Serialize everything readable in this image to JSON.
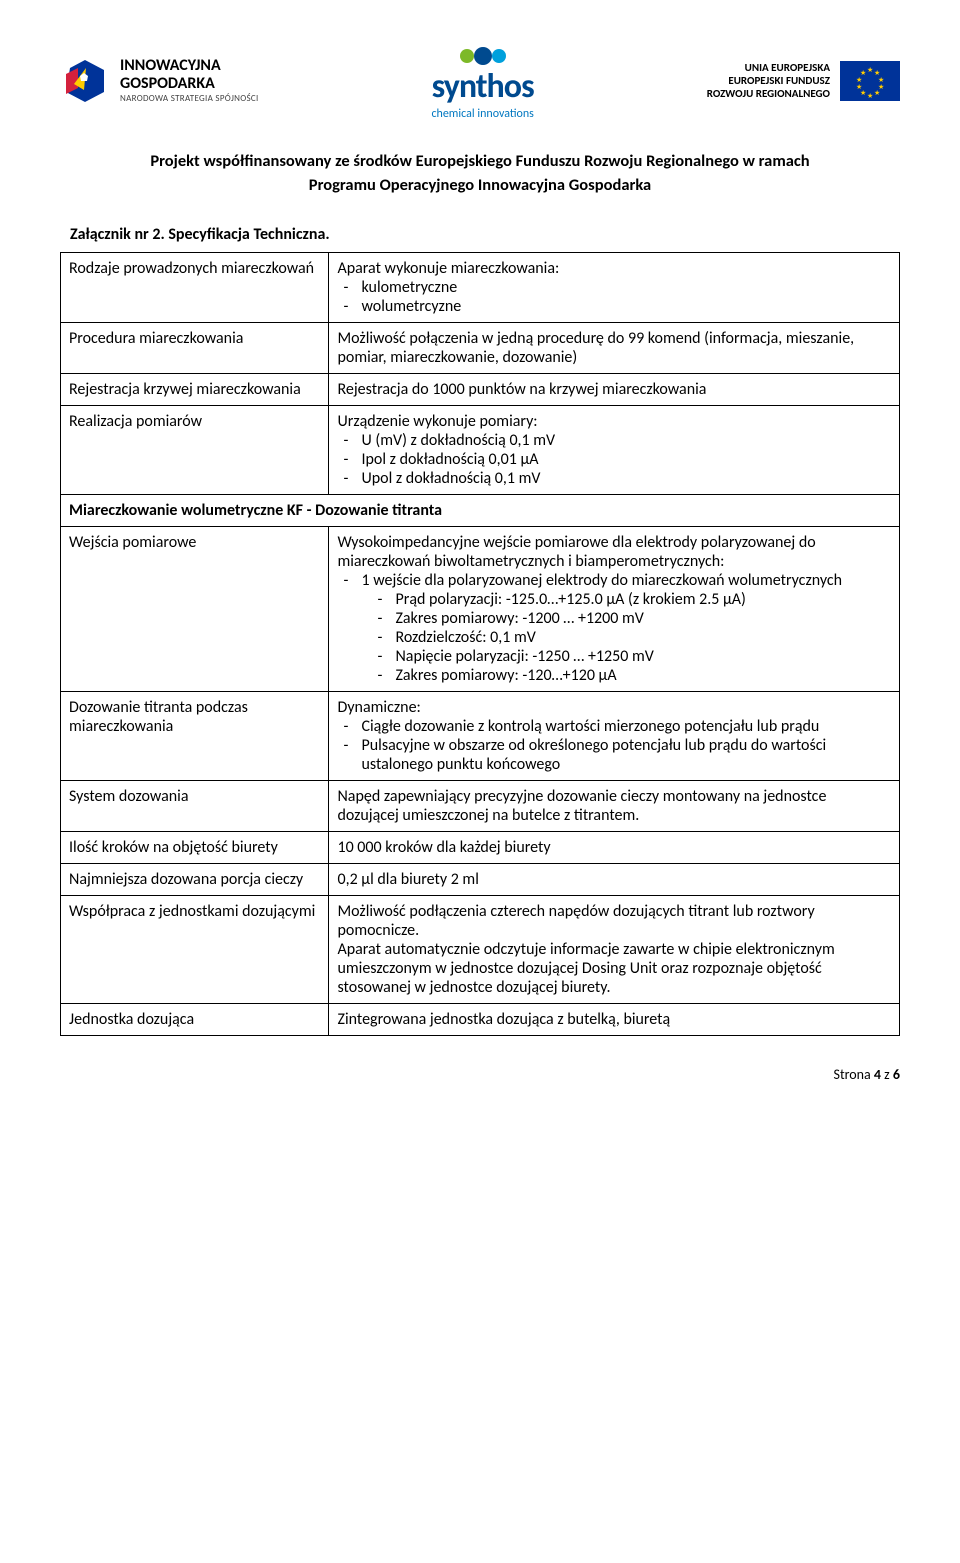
{
  "logos": {
    "ig": {
      "title": "INNOWACYJNA",
      "sub": "GOSPODARKA",
      "caption": "NARODOWA STRATEGIA SPÓJNOŚCI"
    },
    "synthos": {
      "title": "synthos",
      "sub": "chemical innovations"
    },
    "eu": {
      "l1": "UNIA EUROPEJSKA",
      "l2": "EUROPEJSKI FUNDUSZ",
      "l3": "ROZWOJU REGIONALNEGO"
    }
  },
  "heading1": "Projekt współfinansowany ze środków Europejskiego Funduszu Rozwoju Regionalnego w ramach",
  "heading2": "Programu Operacyjnego Innowacyjna Gospodarka",
  "attachment_title": "Załącznik nr 2. Specyfikacja Techniczna.",
  "rows": [
    {
      "label": "Rodzaje prowadzonych miareczkowań",
      "lead": "Aparat wykonuje miareczkowania:",
      "items": [
        "kulometryczne",
        "wolumetrcyzne"
      ]
    },
    {
      "label": "Procedura miareczkowania",
      "text": "Możliwość połączenia w jedną procedurę do 99 komend (informacja, mieszanie, pomiar, miareczkowanie, dozowanie)"
    },
    {
      "label": "Rejestracja krzywej miareczkowania",
      "text": "Rejestracja do 1000 punktów na krzywej miareczkowania"
    },
    {
      "label": "Realizacja pomiarów",
      "lead": "Urządzenie wykonuje pomiary:",
      "items": [
        "U (mV) z dokładnością 0,1 mV",
        "Ipol z dokładnością 0,01 μA",
        "Upol z dokładnością 0,1 mV"
      ]
    }
  ],
  "section_header": "Miareczkowanie wolumetryczne KF - Dozowanie titranta",
  "rows2": [
    {
      "label": "Wejścia pomiarowe",
      "lead": "Wysokoimpedancyjne wejście pomiarowe dla elektrody polaryzowanej do miareczkowań biwoltametrycznych i biamperometrycznych:",
      "items": [
        "1 wejście dla polaryzowanej elektrody do miareczkowań wolumetrycznych"
      ],
      "nested": [
        "Prąd polaryzacji: -125.0…+125.0 µA (z krokiem 2.5 µA)",
        "Zakres pomiarowy: -1200 … +1200 mV",
        "Rozdzielczość: 0,1 mV",
        "Napięcie polaryzacji: -1250 … +1250 mV",
        "Zakres pomiarowy: -120…+120 µA"
      ]
    },
    {
      "label": "Dozowanie titranta podczas miareczkowania",
      "lead": "Dynamiczne:",
      "items": [
        "Ciągłe dozowanie z kontrolą wartości mierzonego potencjału lub prądu",
        "Pulsacyjne w obszarze od określonego potencjału lub prądu do wartości ustalonego punktu końcowego"
      ]
    },
    {
      "label": "System dozowania",
      "text": "Napęd zapewniający precyzyjne dozowanie cieczy montowany na jednostce dozującej umieszczonej na butelce z titrantem."
    },
    {
      "label": "Ilość kroków na objętość biurety",
      "text": "10 000 kroków dla każdej biurety"
    },
    {
      "label": "Najmniejsza dozowana porcja cieczy",
      "text": "0,2 µl dla biurety 2 ml"
    },
    {
      "label": "Współpraca z jednostkami dozującymi",
      "text": "Możliwość podłączenia czterech napędów dozujących titrant lub roztwory pomocnicze.\nAparat automatycznie odczytuje informacje zawarte w chipie elektronicznym umieszczonym w jednostce dozującej Dosing Unit oraz rozpoznaje objętość stosowanej w jednostce dozującej biurety."
    },
    {
      "label": "Jednostka dozująca",
      "text": "Zintegrowana jednostka dozująca z butelką, biuretą"
    }
  ],
  "footer": {
    "prefix": "Strona ",
    "page": "4",
    "mid": " z ",
    "total": "6"
  }
}
